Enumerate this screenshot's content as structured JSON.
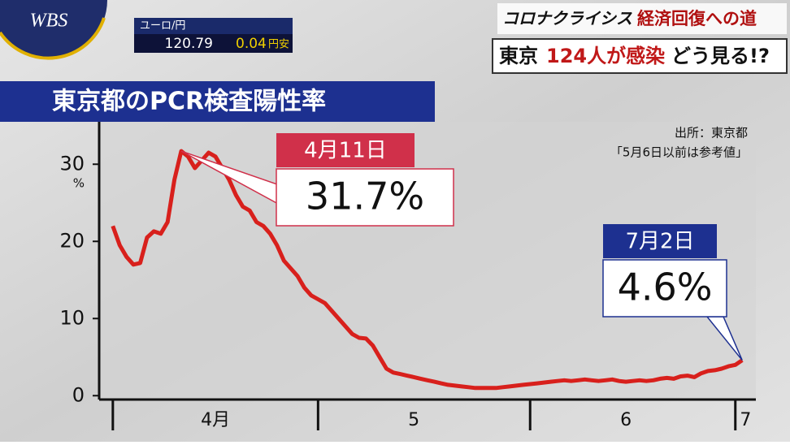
{
  "header": {
    "logo": "WBS",
    "ticker_label": "ユーロ/円",
    "ticker_price": "120.79",
    "ticker_change": "0.04",
    "ticker_direction": "円安",
    "series_title": "コロナクライシス",
    "series_subtitle": "経済回復への道",
    "headline_1": "東京",
    "headline_2": "124人が感染",
    "headline_3": "どう見る!?"
  },
  "chart_data": {
    "type": "line",
    "title": "東京都のPCR検査陽性率",
    "y_unit": "%",
    "source": "出所：東京都",
    "note": "「5月6日以前は参考値」",
    "x": [
      1,
      2,
      3,
      4,
      5,
      6,
      7,
      8,
      9,
      10,
      11,
      12,
      13,
      14,
      15,
      16,
      17,
      18,
      19,
      20,
      21,
      22,
      23,
      24,
      25,
      26,
      27,
      28,
      29,
      30,
      31,
      32,
      33,
      34,
      35,
      36,
      37,
      38,
      39,
      40,
      41,
      42,
      43,
      44,
      45,
      46,
      47,
      48,
      49,
      50,
      51,
      52,
      53,
      54,
      55,
      56,
      57,
      58,
      59,
      60,
      61,
      62,
      63,
      64,
      65,
      66,
      67,
      68,
      69,
      70,
      71,
      72,
      73,
      74,
      75,
      76,
      77,
      78,
      79,
      80,
      81,
      82,
      83,
      84,
      85,
      86,
      87,
      88,
      89,
      90,
      91,
      92,
      93
    ],
    "series": [
      {
        "name": "PCR検査陽性率",
        "color": "#d8201c",
        "values": [
          22,
          19.5,
          18,
          17,
          17.2,
          20.5,
          21.3,
          21,
          22.5,
          28,
          31.7,
          31,
          29.5,
          30.5,
          31.5,
          31,
          29.5,
          28,
          26,
          24.5,
          24,
          22.5,
          22,
          21,
          19.5,
          17.5,
          16.5,
          15.5,
          14,
          13,
          12.5,
          12,
          11,
          10,
          9,
          8,
          7.5,
          7.4,
          6.5,
          5,
          3.5,
          3,
          2.8,
          2.6,
          2.4,
          2.2,
          2,
          1.8,
          1.6,
          1.4,
          1.3,
          1.2,
          1.1,
          1,
          1,
          1,
          1,
          1.1,
          1.2,
          1.3,
          1.4,
          1.5,
          1.6,
          1.7,
          1.8,
          1.9,
          2,
          1.9,
          2,
          2.1,
          2,
          1.9,
          2,
          2.1,
          1.9,
          1.8,
          1.9,
          2,
          1.9,
          2,
          2.2,
          2.3,
          2.2,
          2.5,
          2.6,
          2.4,
          2.9,
          3.2,
          3.3,
          3.5,
          3.8,
          4,
          4.6
        ]
      }
    ],
    "xlim": [
      -1,
      95
    ],
    "ylim": [
      -0.5,
      35.5
    ],
    "yticks": [
      0,
      10,
      20,
      30
    ],
    "xticks": [
      {
        "value": 16,
        "label": "4月"
      },
      {
        "value": 45,
        "label": "5"
      },
      {
        "value": 76,
        "label": "6"
      },
      {
        "value": 93.5,
        "label": "7"
      }
    ],
    "month_boundaries": [
      1,
      31,
      62,
      92
    ],
    "annotations": [
      {
        "date": "4月11日",
        "value_label": "31.7%",
        "x": 11,
        "y": 31.7
      },
      {
        "date": "7月2日",
        "value_label": "4.6%",
        "x": 93,
        "y": 4.6
      }
    ]
  }
}
